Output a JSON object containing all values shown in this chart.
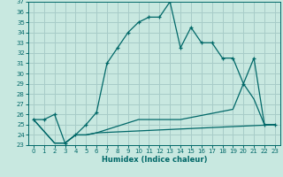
{
  "xlabel": "Humidex (Indice chaleur)",
  "bg_color": "#c8e8e0",
  "grid_color": "#a8ccc8",
  "line_color": "#006868",
  "xlim": [
    -0.5,
    23.5
  ],
  "ylim": [
    23,
    37
  ],
  "xticks": [
    0,
    1,
    2,
    3,
    4,
    5,
    6,
    7,
    8,
    9,
    10,
    11,
    12,
    13,
    14,
    15,
    16,
    17,
    18,
    19,
    20,
    21,
    22,
    23
  ],
  "yticks": [
    23,
    24,
    25,
    26,
    27,
    28,
    29,
    30,
    31,
    32,
    33,
    34,
    35,
    36,
    37
  ],
  "line1_x": [
    0,
    1,
    2,
    3,
    4,
    5,
    6,
    7,
    8,
    9,
    10,
    11,
    12,
    13,
    14,
    15,
    16,
    17,
    18,
    19,
    20,
    21,
    22,
    23
  ],
  "line1_y": [
    25.5,
    25.5,
    26.0,
    23.2,
    24.0,
    25.0,
    26.2,
    31.0,
    32.5,
    34.0,
    35.0,
    35.5,
    35.5,
    37.0,
    32.5,
    34.5,
    33.0,
    33.0,
    31.5,
    31.5,
    29.0,
    31.5,
    25.0,
    25.0
  ],
  "line2_x": [
    0,
    2,
    3,
    4,
    5,
    6,
    23
  ],
  "line2_y": [
    25.5,
    23.2,
    23.2,
    24.0,
    24.0,
    24.2,
    25.0
  ],
  "line3_x": [
    0,
    2,
    3,
    4,
    5,
    6,
    10,
    14,
    19,
    20,
    21,
    22,
    23
  ],
  "line3_y": [
    25.5,
    23.2,
    23.2,
    24.0,
    24.0,
    24.2,
    25.5,
    25.5,
    26.5,
    29.0,
    27.5,
    25.0,
    25.0
  ]
}
